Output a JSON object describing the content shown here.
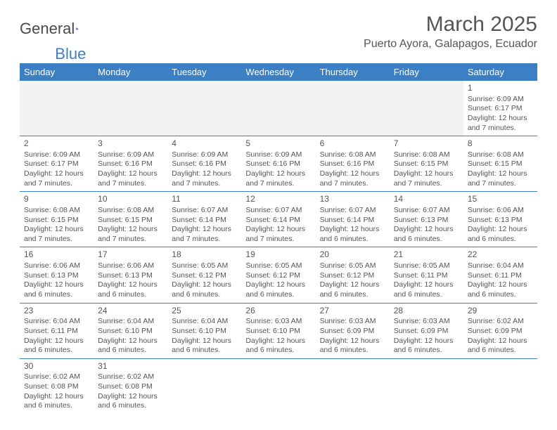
{
  "logo": {
    "text1": "General",
    "text2": "Blue"
  },
  "header": {
    "month_title": "March 2025",
    "location": "Puerto Ayora, Galapagos, Ecuador"
  },
  "colors": {
    "header_bg": "#3b7fc4",
    "header_text": "#ffffff",
    "text": "#555555",
    "empty_bg": "#f2f2f2",
    "border": "#3b7fc4"
  },
  "days": [
    "Sunday",
    "Monday",
    "Tuesday",
    "Wednesday",
    "Thursday",
    "Friday",
    "Saturday"
  ],
  "weeks": [
    [
      {
        "blank": true
      },
      {
        "blank": true
      },
      {
        "blank": true
      },
      {
        "blank": true
      },
      {
        "blank": true
      },
      {
        "blank": true
      },
      {
        "num": "1",
        "sunrise": "Sunrise: 6:09 AM",
        "sunset": "Sunset: 6:17 PM",
        "daylight": "Daylight: 12 hours and 7 minutes."
      }
    ],
    [
      {
        "num": "2",
        "sunrise": "Sunrise: 6:09 AM",
        "sunset": "Sunset: 6:17 PM",
        "daylight": "Daylight: 12 hours and 7 minutes."
      },
      {
        "num": "3",
        "sunrise": "Sunrise: 6:09 AM",
        "sunset": "Sunset: 6:16 PM",
        "daylight": "Daylight: 12 hours and 7 minutes."
      },
      {
        "num": "4",
        "sunrise": "Sunrise: 6:09 AM",
        "sunset": "Sunset: 6:16 PM",
        "daylight": "Daylight: 12 hours and 7 minutes."
      },
      {
        "num": "5",
        "sunrise": "Sunrise: 6:09 AM",
        "sunset": "Sunset: 6:16 PM",
        "daylight": "Daylight: 12 hours and 7 minutes."
      },
      {
        "num": "6",
        "sunrise": "Sunrise: 6:08 AM",
        "sunset": "Sunset: 6:16 PM",
        "daylight": "Daylight: 12 hours and 7 minutes."
      },
      {
        "num": "7",
        "sunrise": "Sunrise: 6:08 AM",
        "sunset": "Sunset: 6:15 PM",
        "daylight": "Daylight: 12 hours and 7 minutes."
      },
      {
        "num": "8",
        "sunrise": "Sunrise: 6:08 AM",
        "sunset": "Sunset: 6:15 PM",
        "daylight": "Daylight: 12 hours and 7 minutes."
      }
    ],
    [
      {
        "num": "9",
        "sunrise": "Sunrise: 6:08 AM",
        "sunset": "Sunset: 6:15 PM",
        "daylight": "Daylight: 12 hours and 7 minutes."
      },
      {
        "num": "10",
        "sunrise": "Sunrise: 6:08 AM",
        "sunset": "Sunset: 6:15 PM",
        "daylight": "Daylight: 12 hours and 7 minutes."
      },
      {
        "num": "11",
        "sunrise": "Sunrise: 6:07 AM",
        "sunset": "Sunset: 6:14 PM",
        "daylight": "Daylight: 12 hours and 7 minutes."
      },
      {
        "num": "12",
        "sunrise": "Sunrise: 6:07 AM",
        "sunset": "Sunset: 6:14 PM",
        "daylight": "Daylight: 12 hours and 7 minutes."
      },
      {
        "num": "13",
        "sunrise": "Sunrise: 6:07 AM",
        "sunset": "Sunset: 6:14 PM",
        "daylight": "Daylight: 12 hours and 6 minutes."
      },
      {
        "num": "14",
        "sunrise": "Sunrise: 6:07 AM",
        "sunset": "Sunset: 6:13 PM",
        "daylight": "Daylight: 12 hours and 6 minutes."
      },
      {
        "num": "15",
        "sunrise": "Sunrise: 6:06 AM",
        "sunset": "Sunset: 6:13 PM",
        "daylight": "Daylight: 12 hours and 6 minutes."
      }
    ],
    [
      {
        "num": "16",
        "sunrise": "Sunrise: 6:06 AM",
        "sunset": "Sunset: 6:13 PM",
        "daylight": "Daylight: 12 hours and 6 minutes."
      },
      {
        "num": "17",
        "sunrise": "Sunrise: 6:06 AM",
        "sunset": "Sunset: 6:13 PM",
        "daylight": "Daylight: 12 hours and 6 minutes."
      },
      {
        "num": "18",
        "sunrise": "Sunrise: 6:05 AM",
        "sunset": "Sunset: 6:12 PM",
        "daylight": "Daylight: 12 hours and 6 minutes."
      },
      {
        "num": "19",
        "sunrise": "Sunrise: 6:05 AM",
        "sunset": "Sunset: 6:12 PM",
        "daylight": "Daylight: 12 hours and 6 minutes."
      },
      {
        "num": "20",
        "sunrise": "Sunrise: 6:05 AM",
        "sunset": "Sunset: 6:12 PM",
        "daylight": "Daylight: 12 hours and 6 minutes."
      },
      {
        "num": "21",
        "sunrise": "Sunrise: 6:05 AM",
        "sunset": "Sunset: 6:11 PM",
        "daylight": "Daylight: 12 hours and 6 minutes."
      },
      {
        "num": "22",
        "sunrise": "Sunrise: 6:04 AM",
        "sunset": "Sunset: 6:11 PM",
        "daylight": "Daylight: 12 hours and 6 minutes."
      }
    ],
    [
      {
        "num": "23",
        "sunrise": "Sunrise: 6:04 AM",
        "sunset": "Sunset: 6:11 PM",
        "daylight": "Daylight: 12 hours and 6 minutes."
      },
      {
        "num": "24",
        "sunrise": "Sunrise: 6:04 AM",
        "sunset": "Sunset: 6:10 PM",
        "daylight": "Daylight: 12 hours and 6 minutes."
      },
      {
        "num": "25",
        "sunrise": "Sunrise: 6:04 AM",
        "sunset": "Sunset: 6:10 PM",
        "daylight": "Daylight: 12 hours and 6 minutes."
      },
      {
        "num": "26",
        "sunrise": "Sunrise: 6:03 AM",
        "sunset": "Sunset: 6:10 PM",
        "daylight": "Daylight: 12 hours and 6 minutes."
      },
      {
        "num": "27",
        "sunrise": "Sunrise: 6:03 AM",
        "sunset": "Sunset: 6:09 PM",
        "daylight": "Daylight: 12 hours and 6 minutes."
      },
      {
        "num": "28",
        "sunrise": "Sunrise: 6:03 AM",
        "sunset": "Sunset: 6:09 PM",
        "daylight": "Daylight: 12 hours and 6 minutes."
      },
      {
        "num": "29",
        "sunrise": "Sunrise: 6:02 AM",
        "sunset": "Sunset: 6:09 PM",
        "daylight": "Daylight: 12 hours and 6 minutes."
      }
    ],
    [
      {
        "num": "30",
        "sunrise": "Sunrise: 6:02 AM",
        "sunset": "Sunset: 6:08 PM",
        "daylight": "Daylight: 12 hours and 6 minutes."
      },
      {
        "num": "31",
        "sunrise": "Sunrise: 6:02 AM",
        "sunset": "Sunset: 6:08 PM",
        "daylight": "Daylight: 12 hours and 6 minutes."
      },
      {
        "blank": true
      },
      {
        "blank": true
      },
      {
        "blank": true
      },
      {
        "blank": true
      },
      {
        "blank": true
      }
    ]
  ]
}
